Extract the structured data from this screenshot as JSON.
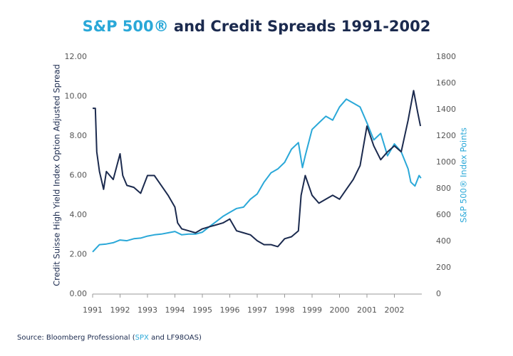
{
  "chart_data": {
    "type": "line",
    "title_parts": [
      "S&P 500®",
      "and Credit Spreads 1991-2002"
    ],
    "title_colors": [
      "#2aa8d8",
      "#1b2a4e"
    ],
    "y_label": "Credit Suisse High Yield Index Option Adjusted Spread",
    "y2_label": "S&P 500® Index Points",
    "source_parts": [
      "Source: Bloomberg Professional (",
      "SPX",
      " and LF98OAS)"
    ],
    "xlim": [
      1991,
      2003
    ],
    "xticks": [
      1991,
      1992,
      1993,
      1994,
      1995,
      1996,
      1997,
      1998,
      1999,
      2000,
      2001,
      2002
    ],
    "ylim": [
      0,
      12
    ],
    "yticks": [
      {
        "value": 0,
        "label": "0.00"
      },
      {
        "value": 2,
        "label": "2.00"
      },
      {
        "value": 4,
        "label": "4.00"
      },
      {
        "value": 6,
        "label": "6.00"
      },
      {
        "value": 8,
        "label": "8.00"
      },
      {
        "value": 10,
        "label": "10.00"
      },
      {
        "value": 12,
        "label": "12.00"
      }
    ],
    "y2lim": [
      0,
      1800
    ],
    "y2ticks": [
      0,
      200,
      400,
      600,
      800,
      1000,
      1200,
      1400,
      1600,
      1800
    ],
    "grid": false,
    "series": [
      {
        "name": "LF98OAS",
        "color": "#1b2a4e",
        "axis": "y",
        "x": [
          1991.0,
          1991.1,
          1991.15,
          1991.25,
          1991.4,
          1991.5,
          1991.75,
          1992.0,
          1992.1,
          1992.25,
          1992.5,
          1992.75,
          1993.0,
          1993.25,
          1993.5,
          1993.75,
          1994.0,
          1994.1,
          1994.25,
          1994.5,
          1994.75,
          1995.0,
          1995.25,
          1995.5,
          1995.75,
          1996.0,
          1996.25,
          1996.5,
          1996.75,
          1997.0,
          1997.25,
          1997.5,
          1997.75,
          1998.0,
          1998.25,
          1998.5,
          1998.6,
          1998.75,
          1999.0,
          1999.25,
          1999.5,
          1999.75,
          2000.0,
          2000.25,
          2000.5,
          2000.75,
          2001.0,
          2001.25,
          2001.5,
          2001.75,
          2002.0,
          2002.25,
          2002.5,
          2002.7,
          2002.85,
          2002.95
        ],
        "values": [
          9.4,
          9.4,
          7.2,
          6.2,
          5.3,
          6.2,
          5.8,
          7.1,
          6.0,
          5.5,
          5.4,
          5.1,
          6.0,
          6.0,
          5.5,
          5.0,
          4.4,
          3.6,
          3.3,
          3.2,
          3.1,
          3.3,
          3.4,
          3.5,
          3.6,
          3.8,
          3.2,
          3.1,
          3.0,
          2.7,
          2.5,
          2.5,
          2.4,
          2.8,
          2.9,
          3.2,
          5.0,
          6.0,
          5.0,
          4.6,
          4.8,
          5.0,
          4.8,
          5.3,
          5.8,
          6.5,
          8.5,
          7.5,
          6.8,
          7.2,
          7.5,
          7.2,
          8.8,
          10.3,
          9.2,
          8.5
        ]
      },
      {
        "name": "SPX",
        "color": "#2aa8d8",
        "axis": "y2",
        "x": [
          1991.0,
          1991.25,
          1991.5,
          1991.75,
          1992.0,
          1992.25,
          1992.5,
          1992.75,
          1993.0,
          1993.25,
          1993.5,
          1993.75,
          1994.0,
          1994.25,
          1994.5,
          1994.75,
          1995.0,
          1995.25,
          1995.5,
          1995.75,
          1996.0,
          1996.25,
          1996.5,
          1996.75,
          1997.0,
          1997.25,
          1997.5,
          1997.75,
          1998.0,
          1998.25,
          1998.5,
          1998.65,
          1998.75,
          1999.0,
          1999.25,
          1999.5,
          1999.75,
          2000.0,
          2000.25,
          2000.5,
          2000.75,
          2001.0,
          2001.25,
          2001.5,
          2001.75,
          2002.0,
          2002.25,
          2002.5,
          2002.6,
          2002.75,
          2002.9,
          2002.97
        ],
        "values": [
          320,
          375,
          380,
          390,
          410,
          405,
          420,
          425,
          440,
          450,
          455,
          465,
          475,
          450,
          455,
          455,
          470,
          510,
          550,
          590,
          620,
          650,
          660,
          720,
          760,
          850,
          920,
          950,
          1000,
          1100,
          1150,
          960,
          1050,
          1250,
          1300,
          1350,
          1320,
          1420,
          1480,
          1450,
          1420,
          1300,
          1170,
          1220,
          1050,
          1140,
          1080,
          950,
          850,
          820,
          900,
          880
        ]
      }
    ]
  }
}
